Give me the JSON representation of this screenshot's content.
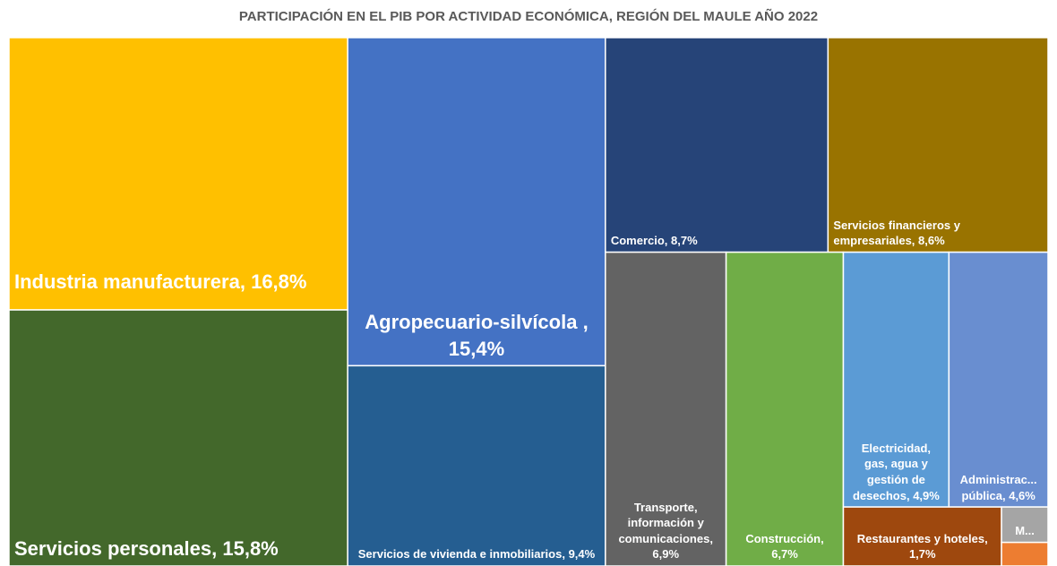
{
  "chart_data": {
    "type": "treemap",
    "title": "PARTICIPACIÓN EN EL PIB POR ACTIVIDAD ECONÓMICA, REGIÓN DEL MAULE AÑO 2022",
    "label_separator": ", ",
    "categories": [
      "Industria manufacturera",
      "Servicios personales",
      "Agropecuario-silvícola ",
      "Servicios de vivienda e inmobiliarios",
      "Comercio",
      "Servicios financieros y empresariales",
      "Transporte, información y comunicaciones",
      "Construcción",
      "Electricidad, gas, agua y gestión de desechos",
      "Administrac... pública",
      "Restaurantes y hoteles",
      "M...",
      null
    ],
    "values": [
      16.8,
      15.8,
      15.4,
      9.4,
      8.7,
      8.6,
      6.9,
      6.7,
      4.9,
      4.6,
      1.7,
      0.3,
      0.2
    ],
    "value_labels": [
      "16,8%",
      "15,8%",
      "15,4%",
      "9,4%",
      "8,7%",
      "8,6%",
      "6,9%",
      "6,7%",
      "4,9%",
      "4,6%",
      "1,7%",
      null,
      null
    ],
    "colors": [
      "#FFC000",
      "#43682B",
      "#4472C4",
      "#255E91",
      "#264478",
      "#997300",
      "#636363",
      "#70AD47",
      "#5B9BD5",
      "#698ED0",
      "#9E480E",
      "#A5A5A5",
      "#ED7D31"
    ]
  }
}
